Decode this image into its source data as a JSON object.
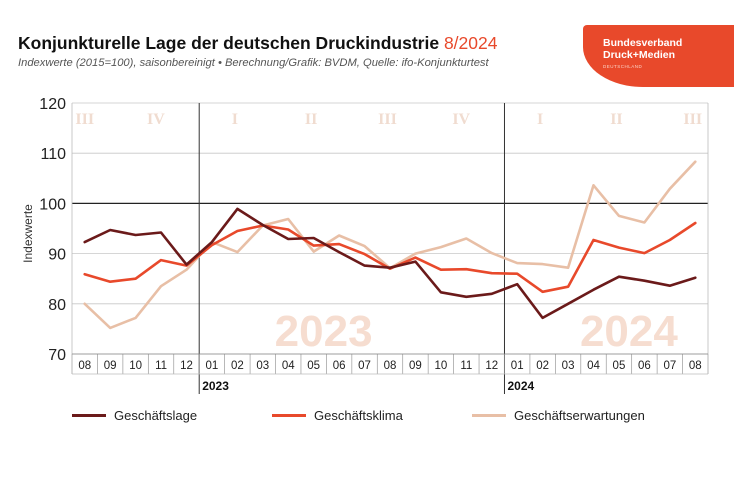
{
  "header": {
    "title": "Konjunkturelle Lage der deutschen Druckindustrie",
    "title_date": "8/2024",
    "subtitle": "Indexwerte (2015=100), saisonbereinigt • Berechnung/Grafik: BVDM, Quelle: ifo-Konjunkturtest"
  },
  "logo": {
    "line1": "Bundesverband",
    "line2": "Druck+Medien",
    "line3": "DEUTSCHLAND"
  },
  "chart_data": {
    "type": "line",
    "ylabel": "Indexwerte",
    "ylim": [
      70,
      120
    ],
    "yticks": [
      70,
      80,
      90,
      100,
      110,
      120
    ],
    "grid": true,
    "legend_position": "bottom",
    "categories": [
      "08",
      "09",
      "10",
      "11",
      "12",
      "01",
      "02",
      "03",
      "04",
      "05",
      "06",
      "07",
      "08",
      "09",
      "10",
      "11",
      "12",
      "01",
      "02",
      "03",
      "04",
      "05",
      "06",
      "07",
      "08"
    ],
    "year_labels": [
      {
        "label": "2023",
        "start_index": 5
      },
      {
        "label": "2024",
        "start_index": 17
      }
    ],
    "quarter_labels": [
      {
        "label": "III",
        "index": 0
      },
      {
        "label": "IV",
        "index": 2.8
      },
      {
        "label": "I",
        "index": 5.9
      },
      {
        "label": "II",
        "index": 8.9
      },
      {
        "label": "III",
        "index": 11.9
      },
      {
        "label": "IV",
        "index": 14.8
      },
      {
        "label": "I",
        "index": 17.9
      },
      {
        "label": "II",
        "index": 20.9
      },
      {
        "label": "III",
        "index": 23.9
      }
    ],
    "watermarks": [
      {
        "label": "2023",
        "index": 11
      },
      {
        "label": "2024",
        "index": 23
      }
    ],
    "series": [
      {
        "name": "Geschäftslage",
        "color": "#6b1a1a",
        "values": [
          92.3,
          94.7,
          93.7,
          94.2,
          87.8,
          92.3,
          98.9,
          95.7,
          92.9,
          93.1,
          90.3,
          87.6,
          87.2,
          88.4,
          82.3,
          81.4,
          82.0,
          83.9,
          77.2,
          80.0,
          82.8,
          85.4,
          84.6,
          83.6,
          85.2
        ]
      },
      {
        "name": "Geschäftsklima",
        "color": "#e8492b",
        "values": [
          85.9,
          84.4,
          85.0,
          88.7,
          87.6,
          91.7,
          94.5,
          95.6,
          94.8,
          91.6,
          91.9,
          89.9,
          87.0,
          89.2,
          86.8,
          86.9,
          86.1,
          86.0,
          82.4,
          83.4,
          92.7,
          91.2,
          90.1,
          92.7,
          96.1
        ]
      },
      {
        "name": "Geschäftserwartungen",
        "color": "#e8bfa6",
        "values": [
          80.0,
          75.2,
          77.2,
          83.5,
          86.8,
          92.3,
          90.3,
          95.6,
          96.9,
          90.4,
          93.6,
          91.5,
          87.1,
          90.0,
          91.3,
          93.0,
          90.1,
          88.1,
          87.9,
          87.2,
          103.6,
          97.5,
          96.2,
          102.9,
          108.3
        ]
      }
    ]
  }
}
